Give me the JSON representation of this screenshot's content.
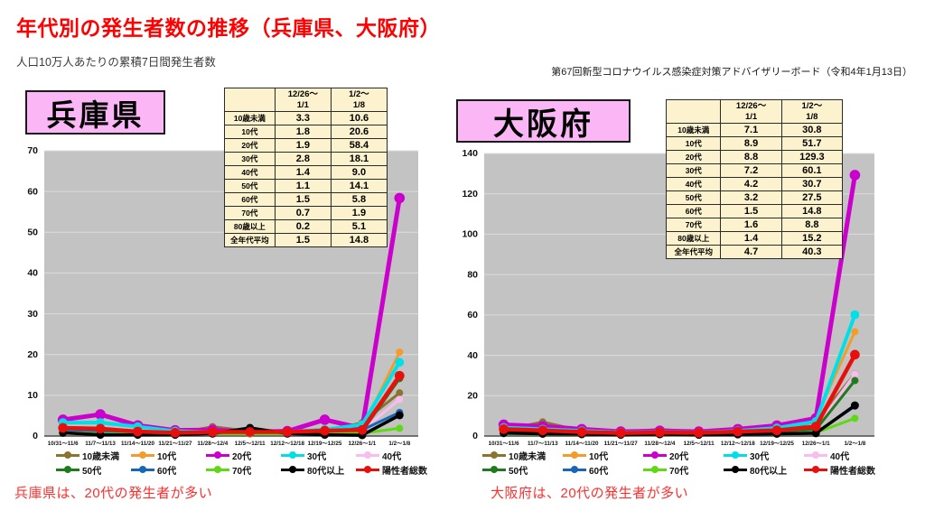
{
  "header": {
    "title": "年代別の発生者数の推移（兵庫県、大阪府）",
    "subtitle": "人口10万人あたりの累積7日間発生者数",
    "note": "第67回新型コロナウイルス感染症対策アドバイザリーボード（令和4年1月13日）"
  },
  "colors": {
    "title_red": "#FF0000",
    "caption_red": "#FF2E2E",
    "pref_box_pink": "#FBB6F5",
    "table_bg": "#FCF2CD",
    "plot_bg": "#C3C3C3",
    "gridline": "#DCDCDC"
  },
  "panels": [
    {
      "name": "兵庫県",
      "caption": "兵庫県は、20代の発生者が多い",
      "table": {
        "col_headers": [
          "",
          "12/26～\n1/1",
          "1/2～\n1/8"
        ],
        "rows": [
          [
            "10歳未満",
            "3.3",
            "10.6"
          ],
          [
            "10代",
            "1.8",
            "20.6"
          ],
          [
            "20代",
            "1.9",
            "58.4"
          ],
          [
            "30代",
            "2.8",
            "18.1"
          ],
          [
            "40代",
            "1.4",
            "9.0"
          ],
          [
            "50代",
            "1.1",
            "14.1"
          ],
          [
            "60代",
            "1.5",
            "5.8"
          ],
          [
            "70代",
            "0.7",
            "1.9"
          ],
          [
            "80歳以上",
            "0.2",
            "5.1"
          ],
          [
            "全年代平均",
            "1.5",
            "14.8"
          ]
        ]
      }
    },
    {
      "name": "大阪府",
      "caption": "大阪府は、20代の発生者が多い",
      "table": {
        "col_headers": [
          "",
          "12/26～\n1/1",
          "1/2～\n1/8"
        ],
        "rows": [
          [
            "10歳未満",
            "7.1",
            "30.8"
          ],
          [
            "10代",
            "8.9",
            "51.7"
          ],
          [
            "20代",
            "8.8",
            "129.3"
          ],
          [
            "30代",
            "7.2",
            "60.1"
          ],
          [
            "40代",
            "4.2",
            "30.7"
          ],
          [
            "50代",
            "3.2",
            "27.5"
          ],
          [
            "60代",
            "1.5",
            "14.8"
          ],
          [
            "70代",
            "1.6",
            "8.8"
          ],
          [
            "80歳以上",
            "1.4",
            "15.2"
          ],
          [
            "全年代平均",
            "4.7",
            "40.3"
          ]
        ]
      }
    }
  ],
  "chart_data": [
    {
      "type": "line",
      "title": "兵庫県",
      "x": [
        "10/31～11/6",
        "11/7～11/13",
        "11/14～11/20",
        "11/21～11/27",
        "11/28～12/4",
        "12/5～12/11",
        "12/12～12/18",
        "12/19～12/25",
        "12/26～1/1",
        "1/2～1/8"
      ],
      "ylim": [
        0,
        70
      ],
      "ytick_step": 10,
      "grid": true,
      "legend_position": "bottom",
      "series": [
        {
          "name": "10歳未満",
          "color": "#8B7330",
          "line_width": 3,
          "values": [
            1.2,
            1.5,
            0.9,
            0.6,
            2.3,
            1.2,
            0.9,
            1.0,
            3.3,
            10.6
          ]
        },
        {
          "name": "10代",
          "color": "#F59B2B",
          "line_width": 3,
          "values": [
            2.0,
            1.8,
            1.2,
            0.8,
            1.2,
            1.0,
            1.0,
            1.5,
            1.8,
            20.6
          ]
        },
        {
          "name": "20代",
          "color": "#CC00CC",
          "line_width": 5,
          "values": [
            4.0,
            5.3,
            2.6,
            1.4,
            1.5,
            1.0,
            1.2,
            4.0,
            1.9,
            58.4
          ]
        },
        {
          "name": "30代",
          "color": "#00DFE8",
          "line_width": 4,
          "values": [
            3.3,
            3.3,
            2.3,
            1.2,
            1.0,
            1.0,
            1.0,
            1.6,
            2.8,
            18.1
          ]
        },
        {
          "name": "40代",
          "color": "#F8BCEF",
          "line_width": 3,
          "values": [
            2.2,
            2.0,
            1.4,
            0.9,
            1.0,
            0.9,
            1.0,
            1.4,
            1.4,
            9.0
          ]
        },
        {
          "name": "50代",
          "color": "#1E7B1E",
          "line_width": 3,
          "values": [
            1.8,
            1.4,
            1.0,
            0.8,
            0.9,
            0.7,
            0.8,
            1.0,
            1.1,
            14.1
          ]
        },
        {
          "name": "60代",
          "color": "#1767B6",
          "line_width": 3,
          "values": [
            1.4,
            1.0,
            0.8,
            0.6,
            0.7,
            0.6,
            0.7,
            0.9,
            1.5,
            5.8
          ]
        },
        {
          "name": "70代",
          "color": "#5FD816",
          "line_width": 3,
          "values": [
            0.9,
            0.6,
            0.5,
            0.4,
            0.5,
            0.5,
            0.5,
            0.6,
            0.7,
            1.9
          ]
        },
        {
          "name": "80代以上",
          "color": "#000000",
          "line_width": 3.5,
          "values": [
            0.8,
            0.3,
            0.3,
            0.3,
            0.6,
            2.0,
            0.6,
            0.3,
            0.2,
            5.1
          ]
        },
        {
          "name": "陽性者総数",
          "color": "#E8100C",
          "line_width": 4.5,
          "values": [
            2.0,
            1.8,
            1.1,
            0.8,
            1.0,
            1.0,
            1.0,
            1.3,
            1.5,
            14.8
          ]
        }
      ]
    },
    {
      "type": "line",
      "title": "大阪府",
      "x": [
        "10/31～11/6",
        "11/7～11/13",
        "11/14～11/20",
        "11/21～11/27",
        "11/28～12/4",
        "12/5～12/11",
        "12/12～12/18",
        "12/19～12/25",
        "12/26～1/1",
        "1/2～1/8"
      ],
      "ylim": [
        0,
        140
      ],
      "ytick_step": 20,
      "grid": true,
      "legend_position": "bottom",
      "series": [
        {
          "name": "10歳未満",
          "color": "#8B7330",
          "line_width": 3,
          "values": [
            3.0,
            7.0,
            2.6,
            2.0,
            3.3,
            2.2,
            2.0,
            2.8,
            7.1,
            30.8
          ]
        },
        {
          "name": "10代",
          "color": "#F59B2B",
          "line_width": 3,
          "values": [
            3.2,
            3.0,
            2.2,
            1.6,
            2.0,
            1.8,
            2.0,
            3.0,
            8.9,
            51.7
          ]
        },
        {
          "name": "20代",
          "color": "#CC00CC",
          "line_width": 5,
          "values": [
            5.6,
            4.8,
            3.4,
            2.2,
            2.6,
            2.2,
            3.4,
            5.2,
            8.8,
            129.3
          ]
        },
        {
          "name": "30代",
          "color": "#00DFE8",
          "line_width": 4,
          "values": [
            4.2,
            3.4,
            2.6,
            1.8,
            2.0,
            1.8,
            2.6,
            4.0,
            7.2,
            60.1
          ]
        },
        {
          "name": "40代",
          "color": "#F8BCEF",
          "line_width": 3,
          "values": [
            3.4,
            2.6,
            2.0,
            1.4,
            1.6,
            1.4,
            2.0,
            3.0,
            4.2,
            30.7
          ]
        },
        {
          "name": "50代",
          "color": "#1E7B1E",
          "line_width": 3,
          "values": [
            2.6,
            2.0,
            1.6,
            1.2,
            1.2,
            1.1,
            1.5,
            2.2,
            3.2,
            27.5
          ]
        },
        {
          "name": "60代",
          "color": "#1767B6",
          "line_width": 3,
          "values": [
            1.6,
            1.4,
            1.0,
            0.7,
            0.9,
            0.7,
            1.0,
            1.2,
            1.5,
            14.8
          ]
        },
        {
          "name": "70代",
          "color": "#5FD816",
          "line_width": 3,
          "values": [
            1.1,
            0.9,
            0.7,
            0.5,
            0.6,
            0.5,
            0.7,
            1.0,
            1.6,
            8.8
          ]
        },
        {
          "name": "80代以上",
          "color": "#000000",
          "line_width": 3.5,
          "values": [
            1.5,
            1.1,
            0.9,
            0.6,
            0.9,
            0.6,
            0.8,
            1.1,
            1.4,
            15.2
          ]
        },
        {
          "name": "陽性者総数",
          "color": "#E8100C",
          "line_width": 4.5,
          "values": [
            3.4,
            2.8,
            2.0,
            1.5,
            1.8,
            1.6,
            2.2,
            2.8,
            4.7,
            40.3
          ]
        }
      ]
    }
  ]
}
